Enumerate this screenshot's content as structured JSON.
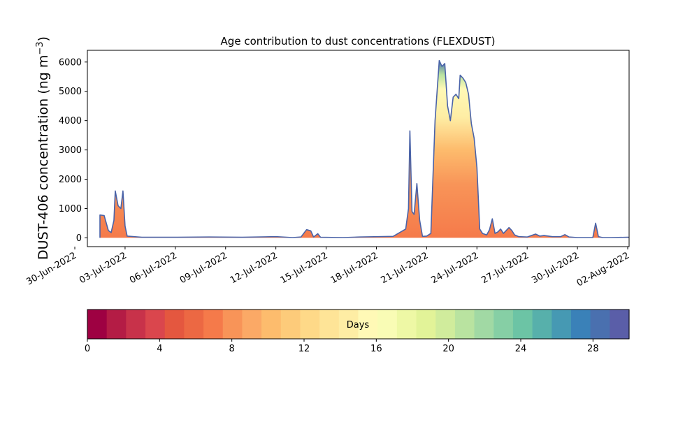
{
  "chart_data": {
    "type": "area",
    "title": "Age contribution to dust concentrations (FLEXDUST)",
    "ylabel_main": "DUST-406 concentration (ng m",
    "ylabel_exp": "−3",
    "ylabel_close": ")",
    "xlabel": "",
    "ylim": [
      -300,
      6400
    ],
    "xlim": [
      "2022-06-30T18:00",
      "2022-08-02T02:00"
    ],
    "yticks": [
      0,
      1000,
      2000,
      3000,
      4000,
      5000,
      6000
    ],
    "xticks": [
      "30-Jun-2022",
      "03-Jul-2022",
      "06-Jul-2022",
      "09-Jul-2022",
      "12-Jul-2022",
      "15-Jul-2022",
      "18-Jul-2022",
      "21-Jul-2022",
      "24-Jul-2022",
      "27-Jul-2022",
      "30-Jul-2022",
      "02-Aug-2022"
    ],
    "stacking": "cumulative by particle age (0–30 days)",
    "total_line_color": "#4a63a8",
    "total_series": {
      "name": "total",
      "points": [
        [
          "2022-07-01T12:00",
          0
        ],
        [
          "2022-07-01T12:00",
          780
        ],
        [
          "2022-07-01T18:00",
          760
        ],
        [
          "2022-07-02T00:00",
          250
        ],
        [
          "2022-07-02T04:00",
          180
        ],
        [
          "2022-07-02T08:00",
          600
        ],
        [
          "2022-07-02T10:00",
          1600
        ],
        [
          "2022-07-02T14:00",
          1100
        ],
        [
          "2022-07-02T18:00",
          1000
        ],
        [
          "2022-07-02T21:00",
          1600
        ],
        [
          "2022-07-03T00:00",
          400
        ],
        [
          "2022-07-03T03:00",
          60
        ],
        [
          "2022-07-04T00:00",
          20
        ],
        [
          "2022-07-06T00:00",
          20
        ],
        [
          "2022-07-08T00:00",
          30
        ],
        [
          "2022-07-10T00:00",
          20
        ],
        [
          "2022-07-12T00:00",
          40
        ],
        [
          "2022-07-13T00:00",
          10
        ],
        [
          "2022-07-13T12:00",
          30
        ],
        [
          "2022-07-13T20:00",
          280
        ],
        [
          "2022-07-14T02:00",
          240
        ],
        [
          "2022-07-14T06:00",
          30
        ],
        [
          "2022-07-14T12:00",
          140
        ],
        [
          "2022-07-14T16:00",
          20
        ],
        [
          "2022-07-16T00:00",
          10
        ],
        [
          "2022-07-17T00:00",
          30
        ],
        [
          "2022-07-19T00:00",
          50
        ],
        [
          "2022-07-19T18:00",
          300
        ],
        [
          "2022-07-19T22:00",
          1000
        ],
        [
          "2022-07-20T00:00",
          3650
        ],
        [
          "2022-07-20T03:00",
          900
        ],
        [
          "2022-07-20T06:00",
          800
        ],
        [
          "2022-07-20T10:00",
          1850
        ],
        [
          "2022-07-20T14:00",
          600
        ],
        [
          "2022-07-20T18:00",
          50
        ],
        [
          "2022-07-21T00:00",
          60
        ],
        [
          "2022-07-21T06:00",
          150
        ],
        [
          "2022-07-21T12:00",
          4000
        ],
        [
          "2022-07-21T18:00",
          6050
        ],
        [
          "2022-07-21T22:00",
          5850
        ],
        [
          "2022-07-22T02:00",
          5950
        ],
        [
          "2022-07-22T06:00",
          4500
        ],
        [
          "2022-07-22T10:00",
          4000
        ],
        [
          "2022-07-22T14:00",
          4800
        ],
        [
          "2022-07-22T18:00",
          4900
        ],
        [
          "2022-07-22T22:00",
          4750
        ],
        [
          "2022-07-23T00:00",
          5550
        ],
        [
          "2022-07-23T04:00",
          5450
        ],
        [
          "2022-07-23T08:00",
          5300
        ],
        [
          "2022-07-23T12:00",
          4900
        ],
        [
          "2022-07-23T16:00",
          3900
        ],
        [
          "2022-07-23T20:00",
          3400
        ],
        [
          "2022-07-24T00:00",
          2400
        ],
        [
          "2022-07-24T04:00",
          300
        ],
        [
          "2022-07-24T08:00",
          150
        ],
        [
          "2022-07-24T14:00",
          100
        ],
        [
          "2022-07-24T18:00",
          280
        ],
        [
          "2022-07-24T22:00",
          650
        ],
        [
          "2022-07-25T02:00",
          150
        ],
        [
          "2022-07-25T06:00",
          200
        ],
        [
          "2022-07-25T10:00",
          300
        ],
        [
          "2022-07-25T14:00",
          150
        ],
        [
          "2022-07-25T18:00",
          250
        ],
        [
          "2022-07-25T22:00",
          350
        ],
        [
          "2022-07-26T02:00",
          250
        ],
        [
          "2022-07-26T06:00",
          100
        ],
        [
          "2022-07-26T12:00",
          40
        ],
        [
          "2022-07-27T00:00",
          30
        ],
        [
          "2022-07-27T12:00",
          130
        ],
        [
          "2022-07-27T18:00",
          60
        ],
        [
          "2022-07-28T00:00",
          80
        ],
        [
          "2022-07-28T12:00",
          40
        ],
        [
          "2022-07-29T00:00",
          40
        ],
        [
          "2022-07-29T06:00",
          110
        ],
        [
          "2022-07-29T12:00",
          30
        ],
        [
          "2022-07-30T00:00",
          10
        ],
        [
          "2022-07-30T22:00",
          10
        ],
        [
          "2022-07-31T02:00",
          500
        ],
        [
          "2022-07-31T06:00",
          40
        ],
        [
          "2022-07-31T12:00",
          10
        ],
        [
          "2022-08-01T00:00",
          10
        ],
        [
          "2022-08-02T00:00",
          20
        ],
        [
          "2022-08-03T00:00",
          10
        ],
        [
          "2022-08-03T18:00",
          0
        ]
      ]
    },
    "colorbar": {
      "label": "Days",
      "ticks": [
        0,
        4,
        8,
        12,
        16,
        20,
        24,
        28
      ],
      "range": [
        0,
        30
      ],
      "colors": [
        "#9e0142",
        "#b41c45",
        "#c8324a",
        "#da464d",
        "#e4573f",
        "#ec6843",
        "#f57a4a",
        "#f89458",
        "#fba966",
        "#fdbc6d",
        "#fdcb7a",
        "#fed988",
        "#fee497",
        "#feeda4",
        "#fff9b6",
        "#f9fcb5",
        "#eef8a5",
        "#e2f398",
        "#d0ec9c",
        "#b9e3a0",
        "#a1d9a4",
        "#86cfa5",
        "#6cc4a5",
        "#57b0ab",
        "#4699b3",
        "#3a81b8",
        "#4a70af",
        "#5a5ea8"
      ]
    }
  }
}
